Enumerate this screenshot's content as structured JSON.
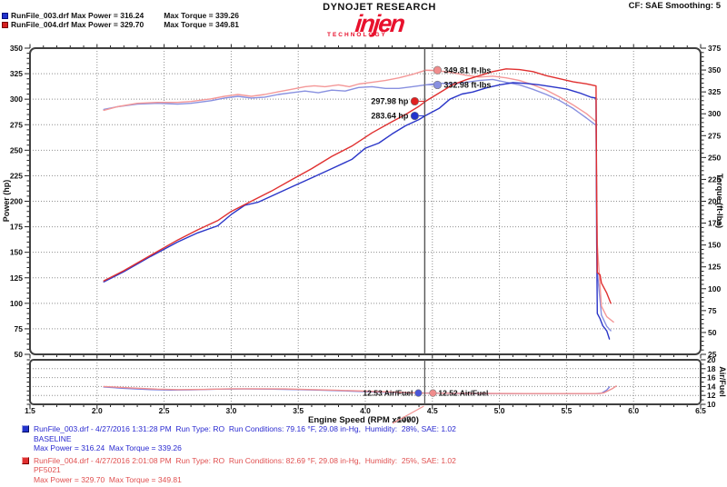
{
  "header": {
    "brand_top": "DYNOJET RESEARCH",
    "logo_text": "injen",
    "logo_sub": "TECHNOLOGY",
    "cf_text": "CF: SAE  Smoothing: 5",
    "legend_rows": [
      {
        "left": "RunFile_003.drf Max Power = 316.24",
        "right": "Max Torque = 339.26",
        "color": "#2233cc"
      },
      {
        "left": "RunFile_004.drf Max Power = 329.70",
        "right": "Max Torque = 349.81",
        "color": "#d42020"
      }
    ]
  },
  "chart_data": {
    "type": "line",
    "xlabel": "Engine Speed (RPM x1000)",
    "x_range": [
      1.5,
      6.5
    ],
    "x_tick_step": 0.5,
    "grid": "dotted",
    "cursor_rpm": 4.443,
    "cursor_rpm_label": "4470",
    "power_axis": {
      "label": "Power (hp)",
      "min": 50,
      "max": 350,
      "step": 25
    },
    "torque_axis": {
      "label": "Torque (ft-lbs)",
      "min": 25,
      "max": 375,
      "step": 25
    },
    "af_axis": {
      "label": "Air/Fuel",
      "min": 10,
      "max": 20,
      "step": 2
    },
    "annotations": [
      {
        "label": "349.81 ft-lbs",
        "axis": "tq",
        "value": 349.81,
        "side": "right",
        "color": "#f08c8c"
      },
      {
        "label": "332.98 ft-lbs",
        "axis": "tq",
        "value": 332.98,
        "side": "right",
        "color": "#8890e0"
      },
      {
        "label": "297.98 hp",
        "axis": "hp",
        "value": 297.98,
        "side": "left",
        "color": "#e02020"
      },
      {
        "label": "283.64 hp",
        "axis": "hp",
        "value": 283.64,
        "side": "left",
        "color": "#2233cc"
      }
    ],
    "af_annotations": [
      {
        "label": "12.53 Air/Fuel",
        "value": 12.53,
        "side": "left",
        "color": "#4a55d8"
      },
      {
        "label": "12.52 Air/Fuel",
        "value": 12.52,
        "side": "right",
        "color": "#f08c8c"
      }
    ],
    "series": [
      {
        "name": "torque_003",
        "axis": "tq",
        "color": "#8890e0",
        "points": [
          [
            2.05,
            305
          ],
          [
            2.15,
            308
          ],
          [
            2.3,
            311
          ],
          [
            2.45,
            312
          ],
          [
            2.6,
            311
          ],
          [
            2.7,
            312
          ],
          [
            2.85,
            315
          ],
          [
            2.95,
            318
          ],
          [
            3.05,
            320
          ],
          [
            3.15,
            318
          ],
          [
            3.25,
            319
          ],
          [
            3.35,
            322
          ],
          [
            3.45,
            324
          ],
          [
            3.55,
            326
          ],
          [
            3.65,
            324
          ],
          [
            3.75,
            327
          ],
          [
            3.85,
            326
          ],
          [
            3.95,
            330
          ],
          [
            4.05,
            331
          ],
          [
            4.15,
            329
          ],
          [
            4.25,
            329
          ],
          [
            4.35,
            331
          ],
          [
            4.45,
            333
          ],
          [
            4.55,
            335
          ],
          [
            4.65,
            334
          ],
          [
            4.75,
            336
          ],
          [
            4.85,
            338
          ],
          [
            4.95,
            339.3
          ],
          [
            5.05,
            336
          ],
          [
            5.15,
            333
          ],
          [
            5.25,
            328
          ],
          [
            5.35,
            322
          ],
          [
            5.45,
            315
          ],
          [
            5.55,
            306
          ],
          [
            5.65,
            295
          ],
          [
            5.71,
            288
          ],
          [
            5.72,
            287
          ],
          [
            5.73,
            120
          ],
          [
            5.76,
            70
          ],
          [
            5.8,
            57
          ],
          [
            5.83,
            52
          ]
        ]
      },
      {
        "name": "torque_004",
        "axis": "tq",
        "color": "#f49898",
        "points": [
          [
            2.05,
            304
          ],
          [
            2.15,
            308
          ],
          [
            2.3,
            312
          ],
          [
            2.45,
            313
          ],
          [
            2.6,
            313
          ],
          [
            2.7,
            314
          ],
          [
            2.85,
            317
          ],
          [
            2.95,
            320
          ],
          [
            3.05,
            322
          ],
          [
            3.15,
            320
          ],
          [
            3.25,
            322
          ],
          [
            3.35,
            325
          ],
          [
            3.45,
            328
          ],
          [
            3.55,
            331
          ],
          [
            3.62,
            332
          ],
          [
            3.7,
            331
          ],
          [
            3.8,
            333
          ],
          [
            3.88,
            331
          ],
          [
            3.95,
            334
          ],
          [
            4.05,
            336
          ],
          [
            4.15,
            338
          ],
          [
            4.25,
            341
          ],
          [
            4.35,
            345
          ],
          [
            4.45,
            349.8
          ],
          [
            4.55,
            349
          ],
          [
            4.65,
            347
          ],
          [
            4.75,
            344
          ],
          [
            4.85,
            342
          ],
          [
            4.95,
            343
          ],
          [
            5.05,
            341
          ],
          [
            5.15,
            338
          ],
          [
            5.25,
            333
          ],
          [
            5.35,
            327
          ],
          [
            5.45,
            319
          ],
          [
            5.55,
            310
          ],
          [
            5.65,
            300
          ],
          [
            5.72,
            291
          ],
          [
            5.73,
            150
          ],
          [
            5.76,
            80
          ],
          [
            5.8,
            68
          ],
          [
            5.85,
            62
          ]
        ]
      },
      {
        "name": "power_003",
        "axis": "hp",
        "color": "#2a35c8",
        "points": [
          [
            2.05,
            121
          ],
          [
            2.2,
            131
          ],
          [
            2.4,
            146
          ],
          [
            2.6,
            160
          ],
          [
            2.75,
            169
          ],
          [
            2.9,
            176
          ],
          [
            3.0,
            187
          ],
          [
            3.1,
            196
          ],
          [
            3.2,
            199
          ],
          [
            3.3,
            205
          ],
          [
            3.45,
            214
          ],
          [
            3.6,
            223
          ],
          [
            3.75,
            232
          ],
          [
            3.9,
            241
          ],
          [
            4.0,
            252
          ],
          [
            4.1,
            257
          ],
          [
            4.2,
            266
          ],
          [
            4.3,
            274
          ],
          [
            4.4,
            280
          ],
          [
            4.45,
            284
          ],
          [
            4.55,
            291
          ],
          [
            4.63,
            300
          ],
          [
            4.72,
            305
          ],
          [
            4.8,
            307
          ],
          [
            4.9,
            311
          ],
          [
            5.0,
            314
          ],
          [
            5.1,
            316.2
          ],
          [
            5.2,
            315.5
          ],
          [
            5.3,
            314
          ],
          [
            5.4,
            312
          ],
          [
            5.5,
            310
          ],
          [
            5.6,
            306
          ],
          [
            5.68,
            302
          ],
          [
            5.72,
            301
          ],
          [
            5.725,
            160
          ],
          [
            5.73,
            90
          ],
          [
            5.75,
            85
          ],
          [
            5.77,
            78
          ],
          [
            5.8,
            73
          ],
          [
            5.82,
            65
          ]
        ]
      },
      {
        "name": "power_004",
        "axis": "hp",
        "color": "#e03030",
        "points": [
          [
            2.05,
            122
          ],
          [
            2.2,
            132
          ],
          [
            2.4,
            147
          ],
          [
            2.6,
            162
          ],
          [
            2.75,
            172
          ],
          [
            2.9,
            181
          ],
          [
            3.0,
            190
          ],
          [
            3.15,
            200
          ],
          [
            3.3,
            210
          ],
          [
            3.45,
            221
          ],
          [
            3.6,
            232
          ],
          [
            3.75,
            244
          ],
          [
            3.9,
            254
          ],
          [
            4.05,
            267
          ],
          [
            4.2,
            278
          ],
          [
            4.3,
            285
          ],
          [
            4.4,
            293
          ],
          [
            4.45,
            298
          ],
          [
            4.55,
            306
          ],
          [
            4.65,
            314
          ],
          [
            4.75,
            319
          ],
          [
            4.85,
            323
          ],
          [
            4.95,
            327
          ],
          [
            5.05,
            329.7
          ],
          [
            5.15,
            329
          ],
          [
            5.25,
            327
          ],
          [
            5.35,
            323
          ],
          [
            5.45,
            320
          ],
          [
            5.55,
            317
          ],
          [
            5.65,
            315
          ],
          [
            5.72,
            313
          ],
          [
            5.725,
            200
          ],
          [
            5.73,
            130
          ],
          [
            5.75,
            128
          ],
          [
            5.76,
            120
          ],
          [
            5.8,
            110
          ],
          [
            5.83,
            100
          ]
        ]
      },
      {
        "name": "af_003",
        "axis": "af",
        "color": "#7a80e0",
        "points": [
          [
            2.05,
            13.9
          ],
          [
            2.2,
            13.6
          ],
          [
            2.4,
            13.3
          ],
          [
            2.55,
            13.2
          ],
          [
            2.7,
            13.25
          ],
          [
            2.9,
            13.4
          ],
          [
            3.1,
            13.45
          ],
          [
            3.3,
            13.4
          ],
          [
            3.5,
            13.3
          ],
          [
            3.7,
            13.15
          ],
          [
            3.9,
            12.95
          ],
          [
            4.1,
            12.75
          ],
          [
            4.3,
            12.6
          ],
          [
            4.45,
            12.53
          ],
          [
            4.7,
            12.45
          ],
          [
            5.0,
            12.4
          ],
          [
            5.3,
            12.4
          ],
          [
            5.6,
            12.4
          ],
          [
            5.72,
            12.4
          ],
          [
            5.76,
            12.5
          ],
          [
            5.8,
            13.2
          ],
          [
            5.82,
            13.9
          ]
        ]
      },
      {
        "name": "af_004",
        "axis": "af",
        "color": "#f09090",
        "points": [
          [
            2.05,
            14.0
          ],
          [
            2.25,
            13.7
          ],
          [
            2.45,
            13.4
          ],
          [
            2.6,
            13.3
          ],
          [
            2.8,
            13.35
          ],
          [
            3.0,
            13.5
          ],
          [
            3.2,
            13.5
          ],
          [
            3.4,
            13.45
          ],
          [
            3.6,
            13.3
          ],
          [
            3.8,
            13.15
          ],
          [
            4.0,
            12.95
          ],
          [
            4.2,
            12.75
          ],
          [
            4.45,
            12.52
          ],
          [
            4.8,
            12.45
          ],
          [
            5.2,
            12.4
          ],
          [
            5.6,
            12.4
          ],
          [
            5.74,
            12.4
          ],
          [
            5.78,
            12.6
          ],
          [
            5.84,
            13.5
          ],
          [
            5.87,
            14.1
          ]
        ]
      }
    ]
  },
  "footer": {
    "runs": [
      {
        "line1": "RunFile_003.drf - 4/27/2016 1:31:28 PM  Run Type: RO  Run Conditions: 79.16 °F, 29.08 in-Hg,  Humidity:  28%, SAE: 1.02",
        "line2": "BASELINE",
        "line3": "Max Power = 316.24  Max Torque = 339.26"
      },
      {
        "line1": "RunFile_004.drf - 4/27/2016 2:01:08 PM  Run Type: RO  Run Conditions: 82.69 °F, 29.08 in-Hg,  Humidity:  25%, SAE: 1.02",
        "line2": "PF5021",
        "line3": "Max Power = 329.70  Max Torque = 349.81"
      }
    ]
  }
}
